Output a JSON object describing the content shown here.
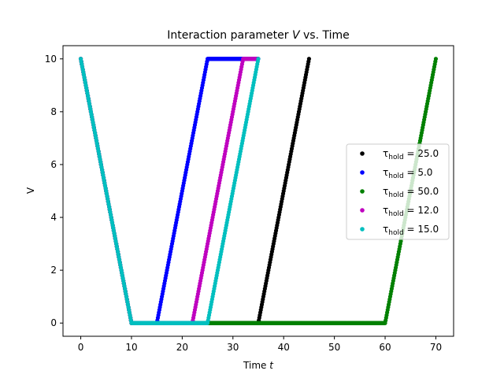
{
  "chart_data": {
    "type": "scatter",
    "title": "Interaction parameter V vs. Time",
    "title_parts": {
      "prefix": "Interaction parameter ",
      "var": "V",
      "suffix": " vs. Time"
    },
    "xlabel": "Time t",
    "xlabel_parts": {
      "prefix": "Time ",
      "var": "t"
    },
    "ylabel": "V",
    "xlim": [
      -3.5,
      73.5
    ],
    "ylim": [
      -0.5,
      10.5
    ],
    "xticks": [
      0,
      10,
      20,
      30,
      40,
      50,
      60,
      70
    ],
    "yticks": [
      0,
      2,
      4,
      6,
      8,
      10
    ],
    "grid": false,
    "legend_position": "center-right",
    "profile": {
      "V_max": 10,
      "V_min": 0,
      "ramp_down_start": 0,
      "ramp_down_end": 10,
      "ramp_up_duration": 10,
      "flat_until": 35,
      "flat_until_for_longest": 70
    },
    "series": [
      {
        "name": "τhold = 25.0",
        "sub": "hold",
        "symbol": "τ",
        "value": "25.0",
        "hold": 25,
        "color": "#000000"
      },
      {
        "name": "τhold = 5.0",
        "sub": "hold",
        "symbol": "τ",
        "value": "5.0",
        "hold": 5,
        "color": "#0000ff"
      },
      {
        "name": "τhold = 50.0",
        "sub": "hold",
        "symbol": "τ",
        "value": "50.0",
        "hold": 50,
        "color": "#008000"
      },
      {
        "name": "τhold = 12.0",
        "sub": "hold",
        "symbol": "τ",
        "value": "12.0",
        "hold": 12,
        "color": "#bf00bf"
      },
      {
        "name": "τhold = 15.0",
        "sub": "hold",
        "symbol": "τ",
        "value": "15.0",
        "hold": 15,
        "color": "#00bfbf"
      }
    ]
  }
}
